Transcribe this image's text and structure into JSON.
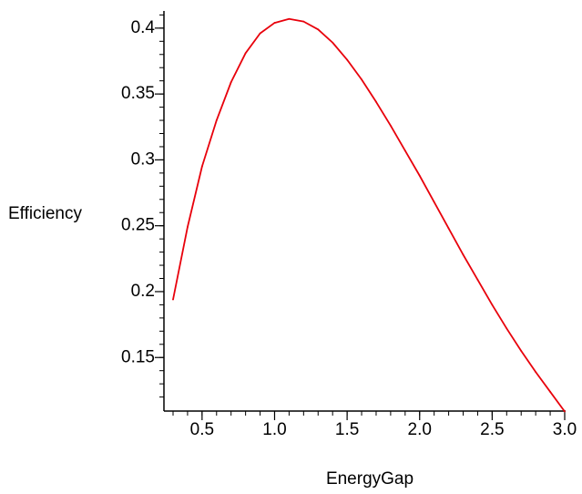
{
  "chart_data": {
    "type": "line",
    "xlabel": "EnergyGap",
    "ylabel": "Efficiency",
    "xlim": [
      0.3,
      3.0
    ],
    "ylim": [
      0.12,
      0.41
    ],
    "x_ticks": [
      {
        "value": 0.5,
        "label": "0.5"
      },
      {
        "value": 1.0,
        "label": "1.0"
      },
      {
        "value": 1.5,
        "label": "1.5"
      },
      {
        "value": 2.0,
        "label": "2.0"
      },
      {
        "value": 2.5,
        "label": "2.5"
      },
      {
        "value": 3.0,
        "label": "3.0"
      }
    ],
    "y_ticks": [
      {
        "value": 0.15,
        "label": "0.15"
      },
      {
        "value": 0.2,
        "label": "0.2"
      },
      {
        "value": 0.25,
        "label": "0.25"
      },
      {
        "value": 0.3,
        "label": "0.3"
      },
      {
        "value": 0.35,
        "label": "0.35"
      },
      {
        "value": 0.4,
        "label": "0.4"
      }
    ],
    "x_minor_step": 0.1,
    "y_minor_step": 0.01,
    "grid": false,
    "series": [
      {
        "color": "#e8000b",
        "x": [
          0.3,
          0.4,
          0.5,
          0.6,
          0.7,
          0.8,
          0.9,
          1.0,
          1.1,
          1.2,
          1.3,
          1.4,
          1.5,
          1.6,
          1.7,
          1.8,
          1.9,
          2.0,
          2.1,
          2.2,
          2.3,
          2.4,
          2.5,
          2.6,
          2.7,
          2.8,
          2.9,
          3.0
        ],
        "y": [
          0.194,
          0.249,
          0.295,
          0.33,
          0.359,
          0.381,
          0.396,
          0.404,
          0.407,
          0.405,
          0.399,
          0.389,
          0.376,
          0.361,
          0.344,
          0.326,
          0.307,
          0.288,
          0.268,
          0.248,
          0.228,
          0.209,
          0.19,
          0.172,
          0.155,
          0.139,
          0.124,
          0.109
        ]
      }
    ]
  }
}
